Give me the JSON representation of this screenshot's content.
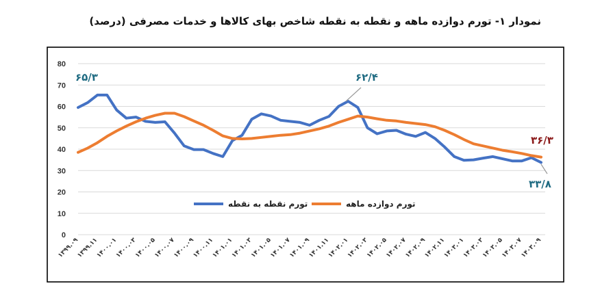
{
  "title": "نمودار ۱- تورم دوازده ماهه و نقطه به نقطه شاخص بهای کالاها و خدمات مصرفی (درصد)",
  "colors": {
    "series_point": "#4472c4",
    "series_annual": "#ed7d31",
    "annot_blue": "#1f6b82",
    "annot_red": "#8b1a1a",
    "grid": "#d9d9d9"
  },
  "chart_data": {
    "type": "line",
    "x": [
      "۱۳۹۹.۰۹",
      "۱۳۹۹.۱۰",
      "۱۳۹۹.۱۱",
      "۱۳۹۹.۱۲",
      "۱۴۰۰.۰۱",
      "۱۴۰۰.۰۲",
      "۱۴۰۰.۰۳",
      "۱۴۰۰.۰۴",
      "۱۴۰۰.۰۵",
      "۱۴۰۰.۰۶",
      "۱۴۰۰.۰۷",
      "۱۴۰۰.۰۸",
      "۱۴۰۰.۰۹",
      "۱۴۰۰.۱۰",
      "۱۴۰۰.۱۱",
      "۱۴۰۰.۱۲",
      "۱۴۰۱.۰۱",
      "۱۴۰۱.۰۲",
      "۱۴۰۱.۰۳",
      "۱۴۰۱.۰۴",
      "۱۴۰۱.۰۵",
      "۱۴۰۱.۰۶",
      "۱۴۰۱.۰۷",
      "۱۴۰۱.۰۸",
      "۱۴۰۱.۰۹",
      "۱۴۰۱.۱۰",
      "۱۴۰۱.۱۱",
      "۱۴۰۱.۱۲",
      "۱۴۰۲.۰۱",
      "۱۴۰۲.۰۲",
      "۱۴۰۲.۰۳",
      "۱۴۰۲.۰۴",
      "۱۴۰۲.۰۵",
      "۱۴۰۲.۰۶",
      "۱۴۰۲.۰۷",
      "۱۴۰۲.۰۸",
      "۱۴۰۲.۰۹",
      "۱۴۰۲.۱۰",
      "۱۴۰۲.۱۱",
      "۱۴۰۲.۱۲",
      "۱۴۰۳.۰۱",
      "۱۴۰۳.۰۲",
      "۱۴۰۳.۰۳",
      "۱۴۰۳.۰۴",
      "۱۴۰۳.۰۵",
      "۱۴۰۳.۰۶",
      "۱۴۰۳.۰۷",
      "۱۴۰۳.۰۸",
      "۱۴۰۳.۰۹"
    ],
    "xtick_labels": [
      "۱۳۹۹.۰۹",
      "۱۳۹۹.۱۱",
      "۱۴۰۰.۰۱",
      "۱۴۰۰.۰۳",
      "۱۴۰۰.۰۵",
      "۱۴۰۰.۰۷",
      "۱۴۰۰.۰۹",
      "۱۴۰۰.۱۱",
      "۱۴۰۱.۰۱",
      "۱۴۰۱.۰۳",
      "۱۴۰۱.۰۵",
      "۱۴۰۱.۰۷",
      "۱۴۰۱.۰۹",
      "۱۴۰۱.۱۱",
      "۱۴۰۲.۰۱",
      "۱۴۰۲.۰۳",
      "۱۴۰۲.۰۵",
      "۱۴۰۲.۰۷",
      "۱۴۰۲.۰۹",
      "۱۴۰۲.۱۱",
      "۱۴۰۳.۰۱",
      "۱۴۰۳.۰۳",
      "۱۴۰۳.۰۵",
      "۱۴۰۳.۰۷",
      "۱۴۰۳.۰۹"
    ],
    "series": [
      {
        "name": "تورم نقطه به نقطه",
        "color": "#4472c4",
        "values": [
          59.5,
          61.8,
          65.3,
          65.3,
          58.3,
          54.5,
          55.0,
          53.0,
          52.5,
          52.8,
          47.5,
          41.5,
          39.8,
          39.8,
          38.0,
          36.5,
          44.0,
          46.5,
          54.0,
          56.5,
          55.5,
          53.5,
          53.0,
          52.5,
          51.2,
          53.5,
          55.3,
          60.0,
          62.4,
          59.5,
          50.0,
          47.2,
          48.5,
          48.8,
          47.0,
          46.0,
          47.8,
          45.0,
          41.0,
          36.5,
          34.8,
          35.0,
          35.8,
          36.5,
          35.5,
          34.5,
          34.5,
          36.0,
          33.8
        ]
      },
      {
        "name": "تورم دوازده ماهه",
        "color": "#ed7d31",
        "values": [
          38.5,
          40.5,
          43.0,
          46.0,
          48.5,
          50.8,
          52.8,
          54.5,
          55.8,
          56.8,
          56.8,
          55.2,
          53.2,
          51.2,
          48.8,
          46.2,
          45.0,
          44.8,
          45.0,
          45.5,
          46.0,
          46.5,
          46.8,
          47.5,
          48.5,
          49.5,
          50.8,
          52.5,
          54.0,
          55.5,
          55.0,
          54.2,
          53.5,
          53.2,
          52.5,
          52.0,
          51.5,
          50.5,
          48.8,
          46.8,
          44.5,
          42.5,
          41.5,
          40.5,
          39.5,
          38.8,
          38.0,
          37.0,
          36.3
        ]
      }
    ],
    "ylim": [
      0,
      80
    ],
    "yticks": [
      "0",
      "10",
      "20",
      "30",
      "40",
      "50",
      "60",
      "70",
      "80"
    ],
    "grid": true,
    "legend_placement": "bottom-center",
    "annotations": {
      "blue_start": "۶۵/۳",
      "blue_peak": "۶۲/۴",
      "blue_end": "۳۳/۸",
      "orange_end": "۳۶/۳"
    }
  }
}
